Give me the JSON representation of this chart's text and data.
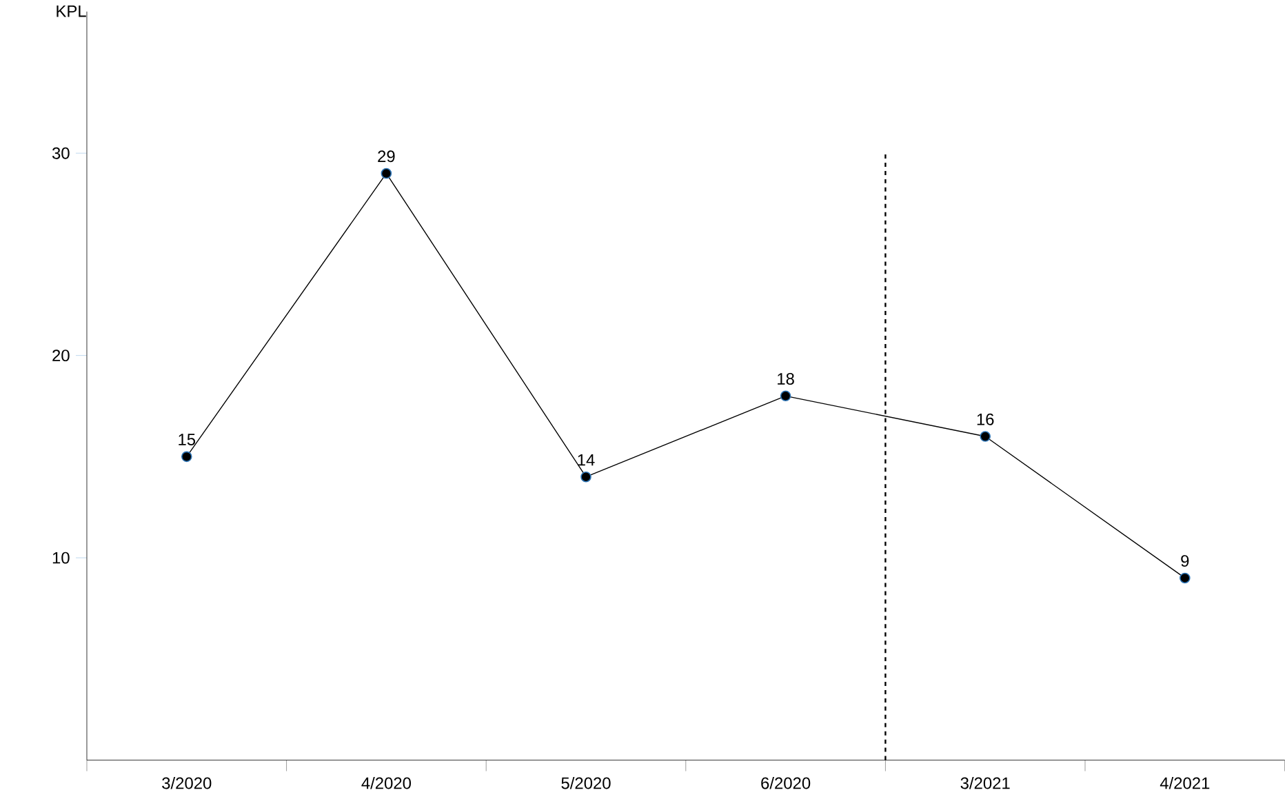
{
  "chart_data": {
    "type": "line",
    "ylabel": "KPL",
    "categories": [
      "3/2020",
      "4/2020",
      "5/2020",
      "6/2020",
      "3/2021",
      "4/2021"
    ],
    "values": [
      15,
      29,
      14,
      18,
      16,
      9
    ],
    "color": "#000000",
    "ylim": [
      0,
      37
    ],
    "yticks": [
      10,
      20,
      30
    ],
    "marker": "circle",
    "line_style": "solid",
    "data_labels": true
  }
}
